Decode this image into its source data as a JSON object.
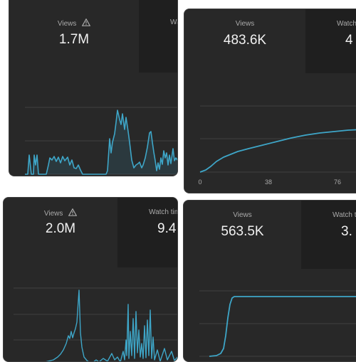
{
  "cards": [
    {
      "metric_label": "Views",
      "metric_value": "1.7M",
      "warning_icon": "warning-triangle-icon",
      "second_tab_label": "Wa",
      "second_tab_value": "",
      "x_ticks": []
    },
    {
      "metric_label": "Views",
      "metric_value": "483.6K",
      "second_tab_label": "Watch",
      "second_tab_value": "4",
      "x_ticks": [
        "0",
        "38",
        "76"
      ]
    },
    {
      "metric_label": "Views",
      "metric_value": "2.0M",
      "warning_icon": "warning-triangle-icon",
      "second_tab_label": "Watch tim",
      "second_tab_value": "9.4",
      "x_ticks": []
    },
    {
      "metric_label": "Views",
      "metric_value": "563.5K",
      "second_tab_label": "Watch tim",
      "second_tab_value": "3.",
      "x_ticks": []
    }
  ],
  "colors": {
    "line": "#3ea6c8",
    "grid": "#3f3f3f",
    "card_bg": "#282828",
    "tab_bg": "#1f1f1f"
  }
}
